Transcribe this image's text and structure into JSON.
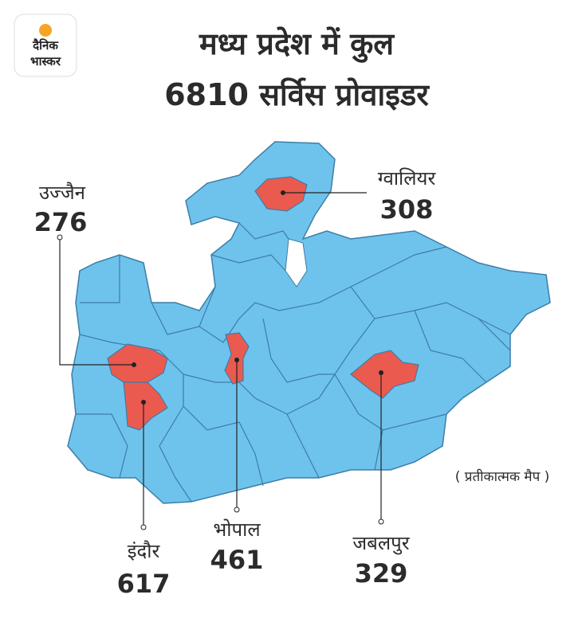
{
  "logo": {
    "lines": [
      "दैनिक",
      "भास्कर"
    ]
  },
  "header": {
    "title": [
      "मध्य प्रदेश में कुल",
      "6810 सर्विस प्रोवाइडर"
    ]
  },
  "cities": [
    {
      "name": "उज्जैन",
      "value": 276
    },
    {
      "name": "ग्वालियर",
      "value": 308
    },
    {
      "name": "इंदौर",
      "value": 617
    },
    {
      "name": "भोपाल",
      "value": 461
    },
    {
      "name": "जबलपुर",
      "value": 329
    }
  ],
  "note": "( प्रतीकात्मक मैप )"
}
